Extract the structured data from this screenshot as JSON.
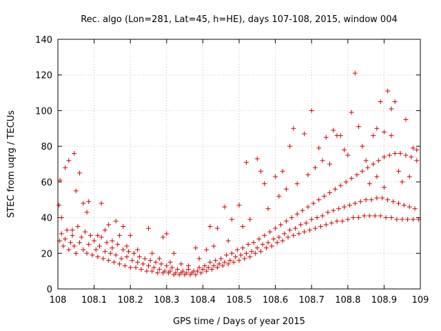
{
  "chart_data": {
    "type": "scatter",
    "title": "Rec. algo (Lon=281, Lat=45, h=HE), days 107-108, 2015, window 004",
    "xlabel": "GPS time / Days of year 2015",
    "ylabel": "STEC from uqrg / TECUs",
    "xlim": [
      108,
      109
    ],
    "ylim": [
      0,
      140
    ],
    "xticks": [
      "108",
      "108.1",
      "108.2",
      "108.3",
      "108.4",
      "108.5",
      "108.6",
      "108.7",
      "108.8",
      "108.9",
      "109"
    ],
    "yticks": [
      "0",
      "20",
      "40",
      "60",
      "80",
      "100",
      "120",
      "140"
    ],
    "grid": true,
    "marker": "+",
    "color": "#cc0000",
    "points": [
      [
        108.005,
        27
      ],
      [
        108.01,
        31
      ],
      [
        108.015,
        24
      ],
      [
        108.02,
        28
      ],
      [
        108.025,
        33
      ],
      [
        108.03,
        22
      ],
      [
        108.035,
        26
      ],
      [
        108.04,
        30
      ],
      [
        108.045,
        24
      ],
      [
        108.05,
        20
      ],
      [
        108.055,
        35
      ],
      [
        108.06,
        26
      ],
      [
        108.065,
        29
      ],
      [
        108.07,
        22
      ],
      [
        108.075,
        32
      ],
      [
        108.08,
        20
      ],
      [
        108.085,
        25
      ],
      [
        108.09,
        30
      ],
      [
        108.095,
        19
      ],
      [
        108.1,
        27
      ],
      [
        108.105,
        22
      ],
      [
        108.11,
        18
      ],
      [
        108.115,
        24
      ],
      [
        108.12,
        29
      ],
      [
        108.125,
        17
      ],
      [
        108.13,
        21
      ],
      [
        108.135,
        26
      ],
      [
        108.14,
        16
      ],
      [
        108.145,
        20
      ],
      [
        108.15,
        23
      ],
      [
        108.155,
        15
      ],
      [
        108.16,
        19
      ],
      [
        108.165,
        25
      ],
      [
        108.17,
        14
      ],
      [
        108.175,
        17
      ],
      [
        108.18,
        22
      ],
      [
        108.185,
        13
      ],
      [
        108.19,
        18
      ],
      [
        108.195,
        21
      ],
      [
        108.2,
        12
      ],
      [
        108.205,
        16
      ],
      [
        108.21,
        20
      ],
      [
        108.215,
        12
      ],
      [
        108.22,
        15
      ],
      [
        108.225,
        18
      ],
      [
        108.23,
        11
      ],
      [
        108.235,
        14
      ],
      [
        108.24,
        17
      ],
      [
        108.245,
        10
      ],
      [
        108.25,
        13
      ],
      [
        108.255,
        16
      ],
      [
        108.26,
        10
      ],
      [
        108.265,
        12
      ],
      [
        108.27,
        15
      ],
      [
        108.275,
        9
      ],
      [
        108.28,
        11
      ],
      [
        108.285,
        14
      ],
      [
        108.29,
        9
      ],
      [
        108.295,
        10
      ],
      [
        108.3,
        13
      ],
      [
        108.305,
        9
      ],
      [
        108.31,
        10
      ],
      [
        108.315,
        12
      ],
      [
        108.32,
        8
      ],
      [
        108.325,
        9
      ],
      [
        108.33,
        11
      ],
      [
        108.335,
        8
      ],
      [
        108.34,
        9
      ],
      [
        108.345,
        10
      ],
      [
        108.35,
        8
      ],
      [
        108.355,
        9
      ],
      [
        108.36,
        11
      ],
      [
        108.365,
        8
      ],
      [
        108.37,
        9
      ],
      [
        108.375,
        10
      ],
      [
        108.38,
        8
      ],
      [
        108.385,
        10
      ],
      [
        108.39,
        12
      ],
      [
        108.395,
        9
      ],
      [
        108.4,
        11
      ],
      [
        108.405,
        13
      ],
      [
        108.41,
        10
      ],
      [
        108.415,
        12
      ],
      [
        108.42,
        15
      ],
      [
        108.425,
        11
      ],
      [
        108.43,
        13
      ],
      [
        108.435,
        16
      ],
      [
        108.44,
        12
      ],
      [
        108.445,
        14
      ],
      [
        108.45,
        17
      ],
      [
        108.455,
        13
      ],
      [
        108.46,
        15
      ],
      [
        108.465,
        19
      ],
      [
        108.47,
        14
      ],
      [
        108.475,
        16
      ],
      [
        108.48,
        20
      ],
      [
        108.485,
        15
      ],
      [
        108.49,
        18
      ],
      [
        108.495,
        22
      ],
      [
        108.5,
        16
      ],
      [
        108.505,
        19
      ],
      [
        108.51,
        23
      ],
      [
        108.515,
        17
      ],
      [
        108.52,
        20
      ],
      [
        108.525,
        25
      ],
      [
        108.53,
        18
      ],
      [
        108.535,
        21
      ],
      [
        108.54,
        26
      ],
      [
        108.545,
        20
      ],
      [
        108.55,
        23
      ],
      [
        108.555,
        28
      ],
      [
        108.56,
        21
      ],
      [
        108.565,
        25
      ],
      [
        108.57,
        30
      ],
      [
        108.575,
        23
      ],
      [
        108.58,
        26
      ],
      [
        108.585,
        32
      ],
      [
        108.59,
        24
      ],
      [
        108.595,
        28
      ],
      [
        108.6,
        34
      ],
      [
        108.605,
        26
      ],
      [
        108.61,
        29
      ],
      [
        108.615,
        36
      ],
      [
        108.62,
        27
      ],
      [
        108.625,
        31
      ],
      [
        108.63,
        38
      ],
      [
        108.635,
        29
      ],
      [
        108.64,
        33
      ],
      [
        108.645,
        40
      ],
      [
        108.65,
        30
      ],
      [
        108.655,
        34
      ],
      [
        108.66,
        42
      ],
      [
        108.665,
        31
      ],
      [
        108.67,
        36
      ],
      [
        108.675,
        44
      ],
      [
        108.68,
        32
      ],
      [
        108.685,
        37
      ],
      [
        108.69,
        46
      ],
      [
        108.695,
        33
      ],
      [
        108.7,
        39
      ],
      [
        108.705,
        48
      ],
      [
        108.71,
        34
      ],
      [
        108.715,
        40
      ],
      [
        108.72,
        50
      ],
      [
        108.725,
        35
      ],
      [
        108.73,
        41
      ],
      [
        108.735,
        52
      ],
      [
        108.74,
        36
      ],
      [
        108.745,
        43
      ],
      [
        108.75,
        54
      ],
      [
        108.755,
        37
      ],
      [
        108.76,
        44
      ],
      [
        108.765,
        56
      ],
      [
        108.77,
        38
      ],
      [
        108.775,
        45
      ],
      [
        108.78,
        58
      ],
      [
        108.785,
        38
      ],
      [
        108.79,
        46
      ],
      [
        108.795,
        60
      ],
      [
        108.8,
        39
      ],
      [
        108.805,
        47
      ],
      [
        108.81,
        62
      ],
      [
        108.815,
        40
      ],
      [
        108.82,
        48
      ],
      [
        108.825,
        64
      ],
      [
        108.83,
        40
      ],
      [
        108.835,
        49
      ],
      [
        108.84,
        66
      ],
      [
        108.845,
        41
      ],
      [
        108.85,
        50
      ],
      [
        108.855,
        68
      ],
      [
        108.86,
        41
      ],
      [
        108.865,
        50
      ],
      [
        108.87,
        70
      ],
      [
        108.875,
        41
      ],
      [
        108.88,
        51
      ],
      [
        108.885,
        72
      ],
      [
        108.89,
        41
      ],
      [
        108.895,
        51
      ],
      [
        108.9,
        74
      ],
      [
        108.905,
        40
      ],
      [
        108.91,
        50
      ],
      [
        108.915,
        75
      ],
      [
        108.92,
        40
      ],
      [
        108.925,
        49
      ],
      [
        108.93,
        76
      ],
      [
        108.935,
        39
      ],
      [
        108.94,
        48
      ],
      [
        108.945,
        76
      ],
      [
        108.95,
        39
      ],
      [
        108.955,
        47
      ],
      [
        108.96,
        75
      ],
      [
        108.965,
        39
      ],
      [
        108.97,
        46
      ],
      [
        108.975,
        74
      ],
      [
        108.98,
        39
      ],
      [
        108.985,
        45
      ],
      [
        108.99,
        72
      ],
      [
        108.995,
        39
      ],
      [
        108.003,
        47
      ],
      [
        108.006,
        61
      ],
      [
        108.02,
        68
      ],
      [
        108.03,
        72
      ],
      [
        108.045,
        76
      ],
      [
        108.05,
        55
      ],
      [
        108.06,
        65
      ],
      [
        108.07,
        48
      ],
      [
        108.085,
        49
      ],
      [
        108.12,
        48
      ],
      [
        108.14,
        36
      ],
      [
        108.16,
        38
      ],
      [
        108.18,
        35
      ],
      [
        108.2,
        30
      ],
      [
        108.25,
        34
      ],
      [
        108.29,
        29
      ],
      [
        108.3,
        31
      ],
      [
        108.32,
        20
      ],
      [
        108.38,
        23
      ],
      [
        108.41,
        22
      ],
      [
        108.42,
        35
      ],
      [
        108.44,
        34
      ],
      [
        108.46,
        46
      ],
      [
        108.48,
        39
      ],
      [
        108.5,
        47
      ],
      [
        108.52,
        71
      ],
      [
        108.55,
        73
      ],
      [
        108.56,
        66
      ],
      [
        108.57,
        59
      ],
      [
        108.6,
        63
      ],
      [
        108.62,
        66
      ],
      [
        108.64,
        80
      ],
      [
        108.65,
        90
      ],
      [
        108.68,
        87
      ],
      [
        108.7,
        100
      ],
      [
        108.72,
        79
      ],
      [
        108.74,
        85
      ],
      [
        108.76,
        89
      ],
      [
        108.77,
        86
      ],
      [
        108.78,
        86
      ],
      [
        108.8,
        75
      ],
      [
        108.81,
        99
      ],
      [
        108.82,
        121
      ],
      [
        108.83,
        91
      ],
      [
        108.85,
        72
      ],
      [
        108.87,
        86
      ],
      [
        108.88,
        90
      ],
      [
        108.89,
        105
      ],
      [
        108.9,
        88
      ],
      [
        108.91,
        111
      ],
      [
        108.92,
        101
      ],
      [
        108.93,
        105
      ],
      [
        108.95,
        60
      ],
      [
        108.96,
        95
      ],
      [
        108.98,
        79
      ],
      [
        108.99,
        78
      ],
      [
        108.01,
        40
      ],
      [
        108.04,
        33
      ],
      [
        108.08,
        43
      ],
      [
        108.11,
        30
      ],
      [
        108.13,
        33
      ],
      [
        108.15,
        27
      ],
      [
        108.17,
        30
      ],
      [
        108.19,
        24
      ],
      [
        108.22,
        22
      ],
      [
        108.26,
        20
      ],
      [
        108.28,
        17
      ],
      [
        108.31,
        15
      ],
      [
        108.34,
        14
      ],
      [
        108.36,
        13
      ],
      [
        108.39,
        17
      ],
      [
        108.43,
        24
      ],
      [
        108.47,
        27
      ],
      [
        108.51,
        35
      ],
      [
        108.53,
        39
      ],
      [
        108.58,
        45
      ],
      [
        108.61,
        52
      ],
      [
        108.63,
        56
      ],
      [
        108.66,
        59
      ],
      [
        108.69,
        64
      ],
      [
        108.71,
        68
      ],
      [
        108.73,
        72
      ],
      [
        108.75,
        70
      ],
      [
        108.79,
        78
      ],
      [
        108.84,
        80
      ],
      [
        108.86,
        59
      ],
      [
        108.88,
        63
      ],
      [
        108.9,
        57
      ],
      [
        108.92,
        86
      ],
      [
        108.94,
        66
      ],
      [
        108.97,
        63
      ]
    ]
  }
}
